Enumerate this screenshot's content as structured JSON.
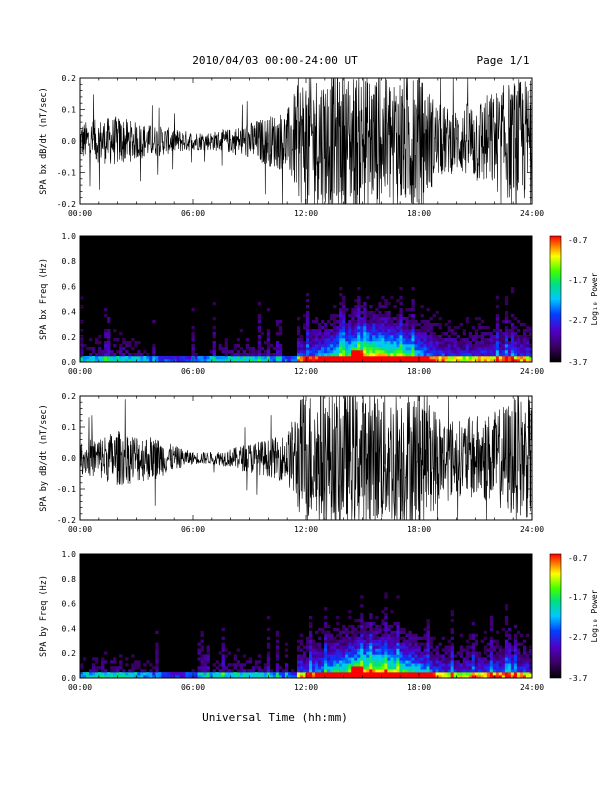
{
  "header": {
    "date_label": "2010/04/03  00:00-24:00 UT",
    "page_label": "Page 1/1"
  },
  "xaxis_label": "Universal Time (hh:mm)",
  "time_ticks": [
    "00:00",
    "06:00",
    "12:00",
    "18:00",
    "24:00"
  ],
  "colorbar": {
    "label": "Log₁₀ Power",
    "ticks": [
      "-0.7",
      "-1.7",
      "-2.7",
      "-3.7"
    ]
  },
  "chart_data": [
    {
      "type": "line",
      "ylabel": "SPA bx dB/dt (nT/sec)",
      "xlim": [
        0,
        24
      ],
      "ylim": [
        -0.2,
        0.2
      ],
      "yticks": [
        "0.2",
        "0.1",
        "0.0",
        "-0.1",
        "-0.2"
      ],
      "envelope_hours": [
        0,
        1,
        2,
        3,
        4,
        5,
        6,
        7,
        8,
        9,
        10,
        11,
        11.7,
        12,
        13,
        14,
        15,
        16,
        17,
        18,
        19,
        20,
        21,
        22,
        23,
        24
      ],
      "envelope_amplitude": [
        0.06,
        0.07,
        0.08,
        0.06,
        0.05,
        0.04,
        0.03,
        0.03,
        0.04,
        0.06,
        0.08,
        0.1,
        0.2,
        0.22,
        0.22,
        0.22,
        0.22,
        0.22,
        0.22,
        0.22,
        0.12,
        0.1,
        0.14,
        0.16,
        0.2,
        0.2
      ]
    },
    {
      "type": "heatmap",
      "ylabel": "SPA bx Freq (Hz)",
      "xlim": [
        0,
        24
      ],
      "ylim": [
        0,
        1.0
      ],
      "yticks": [
        "1.0",
        "0.8",
        "0.6",
        "0.4",
        "0.2",
        "0.0"
      ],
      "zlim": [
        -3.7,
        -0.7
      ],
      "zlabel": "Log₁₀ Power"
    },
    {
      "type": "line",
      "ylabel": "SPA by dB/dt (nT/sec)",
      "xlim": [
        0,
        24
      ],
      "ylim": [
        -0.2,
        0.2
      ],
      "yticks": [
        "0.2",
        "0.1",
        "0.0",
        "-0.1",
        "-0.2"
      ],
      "envelope_hours": [
        0,
        1,
        2,
        3,
        4,
        5,
        6,
        7,
        8,
        9,
        10,
        11,
        11.7,
        12,
        13,
        14,
        15,
        16,
        17,
        18,
        19,
        20,
        21,
        22,
        23,
        24
      ],
      "envelope_amplitude": [
        0.05,
        0.07,
        0.09,
        0.08,
        0.07,
        0.04,
        0.02,
        0.02,
        0.03,
        0.05,
        0.06,
        0.08,
        0.2,
        0.22,
        0.22,
        0.22,
        0.22,
        0.22,
        0.22,
        0.22,
        0.16,
        0.12,
        0.14,
        0.15,
        0.2,
        0.2
      ]
    },
    {
      "type": "heatmap",
      "ylabel": "SPA by Freq (Hz)",
      "xlim": [
        0,
        24
      ],
      "ylim": [
        0,
        1.0
      ],
      "yticks": [
        "1.0",
        "0.8",
        "0.6",
        "0.4",
        "0.2",
        "0.0"
      ],
      "zlim": [
        -3.7,
        -0.7
      ],
      "zlabel": "Log₁₀ Power"
    }
  ]
}
